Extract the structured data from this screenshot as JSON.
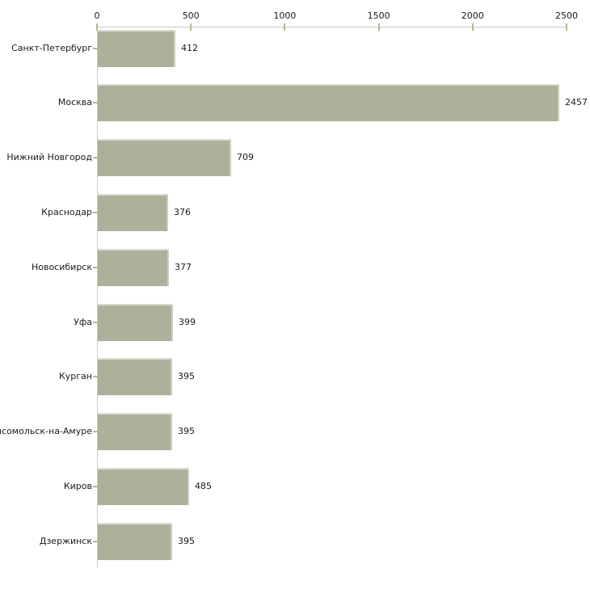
{
  "chart_data": {
    "type": "bar",
    "orientation": "horizontal",
    "title": "",
    "xlabel": "",
    "ylabel": "",
    "xlim": [
      0,
      2500
    ],
    "x_ticks": [
      0,
      500,
      1000,
      1500,
      2000,
      2500
    ],
    "grid": false,
    "legend": false,
    "categories": [
      "Санкт-Петербург",
      "Москва",
      "Нижний Новгород",
      "Краснодар",
      "Новосибирск",
      "Уфа",
      "Курган",
      "Комсомольск-на-Амуре",
      "Киров",
      "Дзержинск"
    ],
    "values": [
      412,
      2457,
      709,
      376,
      377,
      399,
      395,
      395,
      485,
      395
    ],
    "value_labels": [
      "412",
      "2457",
      "709",
      "376",
      "377",
      "399",
      "395",
      "395",
      "485",
      "395"
    ],
    "colors": {
      "bar_fill": "#abb19a",
      "axis_line": "#c9c9c9",
      "tick_mark": "#b9b695",
      "text": "#1a1a1a"
    }
  }
}
